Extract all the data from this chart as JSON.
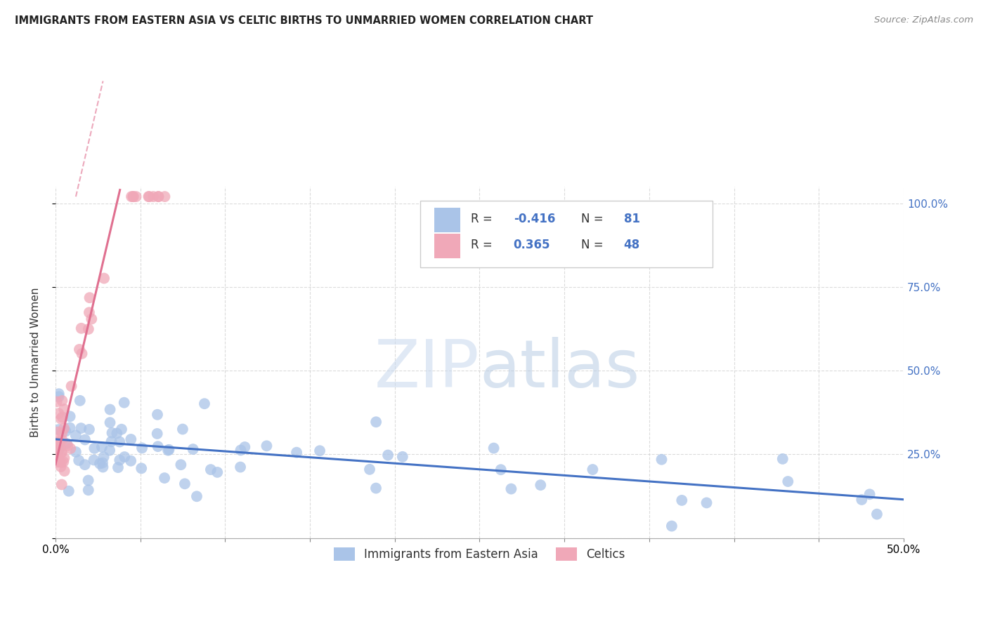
{
  "title": "IMMIGRANTS FROM EASTERN ASIA VS CELTIC BIRTHS TO UNMARRIED WOMEN CORRELATION CHART",
  "source": "Source: ZipAtlas.com",
  "ylabel": "Births to Unmarried Women",
  "right_yticks": [
    "100.0%",
    "75.0%",
    "50.0%",
    "25.0%"
  ],
  "right_ytick_vals": [
    1.0,
    0.75,
    0.5,
    0.25
  ],
  "blue_R": -0.416,
  "blue_N": 81,
  "pink_R": 0.365,
  "pink_N": 48,
  "blue_color": "#aac4e8",
  "pink_color": "#f0a8b8",
  "blue_line_color": "#4472c4",
  "pink_line_color": "#e07090",
  "legend_blue_label": "Immigrants from Eastern Asia",
  "legend_pink_label": "Celtics",
  "xlim": [
    0,
    0.5
  ],
  "ylim": [
    0,
    1.05
  ],
  "blue_trend_x0": 0.0,
  "blue_trend_x1": 0.5,
  "blue_trend_y0": 0.295,
  "blue_trend_y1": 0.115,
  "pink_trend_x0": 0.0,
  "pink_trend_x1": 0.038,
  "pink_trend_y0": 0.22,
  "pink_trend_y1": 1.04
}
